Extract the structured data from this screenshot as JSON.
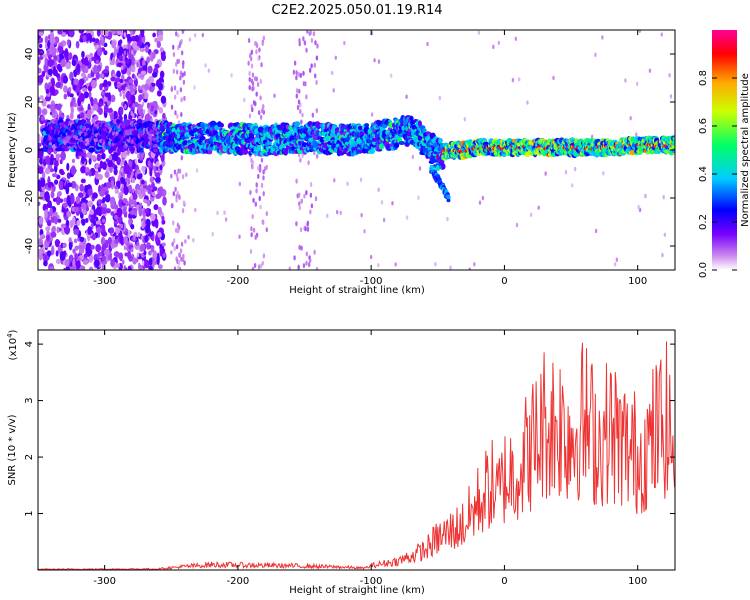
{
  "title": "C2E2.2025.050.01.19.R14",
  "chart_data": [
    {
      "type": "heatmap",
      "xlabel": "Height of straight line (km)",
      "ylabel": "Frequency (Hz)",
      "xlim": [
        -350,
        128
      ],
      "ylim": [
        -50,
        50
      ],
      "x_ticks": [
        -300,
        -200,
        -100,
        0,
        100
      ],
      "y_ticks": [
        -40,
        -20,
        0,
        20,
        40
      ],
      "colorbar": {
        "label": "Normalized spectral amplitude",
        "range": [
          0,
          1
        ],
        "ticks": [
          "0.0",
          "0.2",
          "0.4",
          "0.6",
          "0.8"
        ],
        "colormap": [
          "#ffffff",
          "#cc88ee",
          "#7700ff",
          "#0000ff",
          "#00ccff",
          "#00ff66",
          "#ccff00",
          "#ffaa00",
          "#ff0000",
          "#ff0099"
        ]
      },
      "ridge": {
        "x": [
          -300,
          -270,
          -240,
          -210,
          -180,
          -160,
          -140,
          -120,
          -100,
          -90,
          -80,
          -70,
          -60,
          -50,
          -45,
          -40,
          -30,
          -20,
          -10,
          0,
          20,
          40,
          60,
          80,
          100,
          128
        ],
        "frequency": [
          6,
          6,
          5,
          5,
          4,
          5,
          5,
          4,
          5,
          6,
          7,
          8,
          4,
          -2,
          -1,
          0,
          0,
          1,
          1,
          1,
          1,
          1,
          1,
          1,
          2,
          2
        ]
      },
      "tail": {
        "x": [
          -55,
          -48,
          -44,
          -42
        ],
        "frequency": [
          -8,
          -14,
          -18,
          -20
        ]
      }
    },
    {
      "type": "line",
      "xlabel": "Height of straight line (km)",
      "ylabel": "SNR (10 * v/v)",
      "y_multiplier": "(x10",
      "y_multiplier_exp": "4",
      "xlim": [
        -350,
        128
      ],
      "ylim": [
        0,
        4.25
      ],
      "x_ticks": [
        -300,
        -200,
        -100,
        0,
        100
      ],
      "y_ticks": [
        1,
        2,
        3,
        4
      ],
      "series": [
        {
          "color": "#ee3333",
          "envelope": {
            "x": [
              -350,
              -260,
              -240,
              -220,
              -200,
              -160,
              -120,
              -105,
              -100,
              -80,
              -60,
              -50,
              -40,
              -30,
              -20,
              -10,
              -5,
              0,
              10,
              20,
              30,
              40,
              50,
              60,
              70,
              80,
              90,
              100,
              110,
              120,
              128
            ],
            "y": [
              0.02,
              0.03,
              0.1,
              0.15,
              0.14,
              0.12,
              0.08,
              0.05,
              0.12,
              0.25,
              0.55,
              0.9,
              1.1,
              1.3,
              1.9,
              2.4,
              2.1,
              2.6,
              2.9,
              3.4,
              4.1,
              4.15,
              3.9,
              4.2,
              3.6,
              3.9,
              3.5,
              3.2,
              3.6,
              4.2,
              3.5
            ]
          },
          "noise_floor": 0.3
        }
      ]
    }
  ]
}
